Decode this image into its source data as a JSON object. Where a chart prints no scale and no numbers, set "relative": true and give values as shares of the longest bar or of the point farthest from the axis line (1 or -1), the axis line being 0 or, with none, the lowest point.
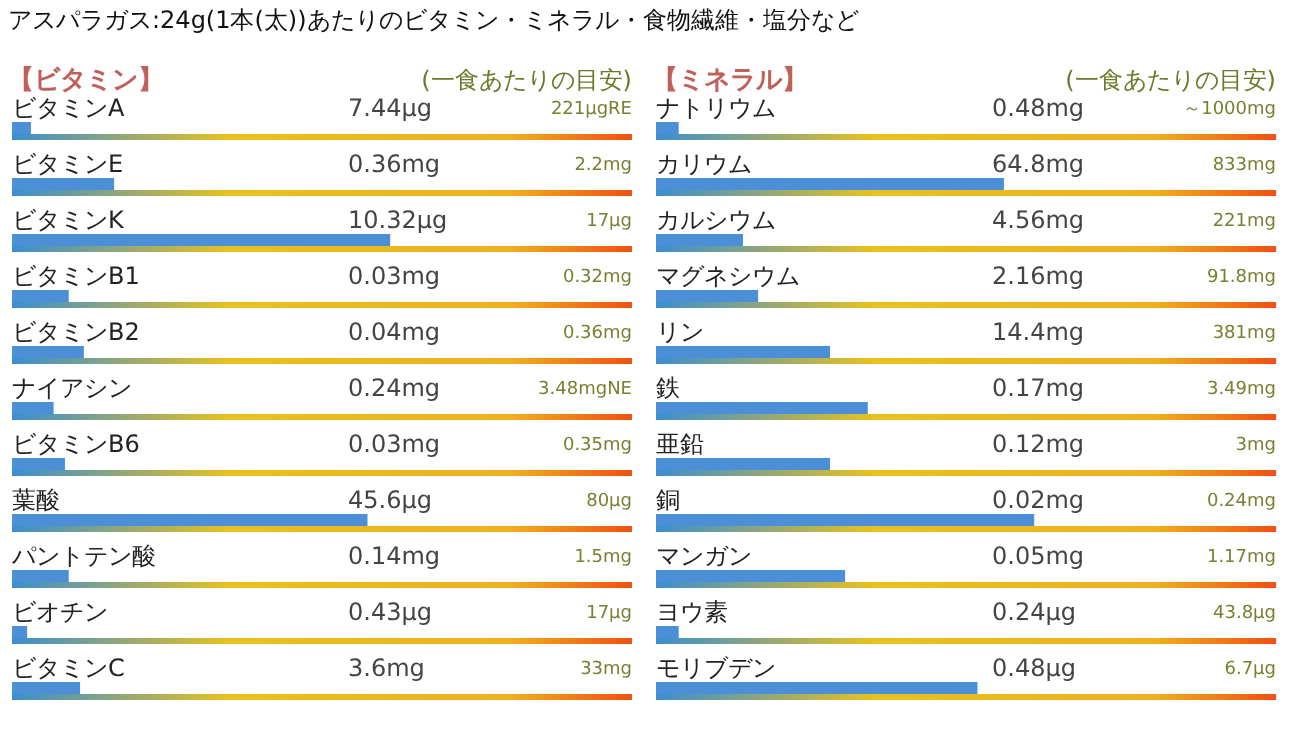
{
  "chart_data": [
    {
      "type": "bar",
      "orientation": "horizontal",
      "relative": true,
      "title": "アスパラガス:24g(1本(太))あたりのビタミン・ミネラル・食物繊維・塩分など",
      "subtitle": "【ビタミン】",
      "color": "#4a8fd8",
      "categories": [
        "ビタミンA",
        "ビタミンE",
        "ビタミンK",
        "ビタミンB1",
        "ビタミンB2",
        "ナイアシン",
        "ビタミンB6",
        "葉酸",
        "パントテン酸",
        "ビオチン",
        "ビタミンC"
      ],
      "values": [
        0.05,
        0.27,
        1,
        0.15,
        0.19,
        0.11,
        0.14,
        0.94,
        0.15,
        0.04,
        0.18
      ],
      "annotations": [
        "(一食あたりの目安)",
        "7.44μg",
        "221μgRE",
        "0.36mg",
        "2.2mg",
        "10.32μg",
        "17μg",
        "0.03mg",
        "0.32mg",
        "0.04mg",
        "0.36mg",
        "0.24mg",
        "3.48mgNE",
        "0.03mg",
        "0.35mg",
        "45.6μg",
        "80μg",
        "0.14mg",
        "1.5mg",
        "0.43μg",
        "17μg",
        "3.6mg",
        "33mg"
      ]
    },
    {
      "type": "bar",
      "orientation": "horizontal",
      "relative": true,
      "subtitle": "【ミネラル】",
      "color": "#4a8fd8",
      "categories": [
        "ナトリウム",
        "カリウム",
        "カルシウム",
        "マグネシウム",
        "リン",
        "鉄",
        "亜鉛",
        "銅",
        "マンガン",
        "ヨウ素",
        "モリブデン"
      ],
      "values": [
        0.06,
        0.92,
        0.23,
        0.27,
        0.46,
        0.56,
        0.46,
        1,
        0.5,
        0.06,
        0.85
      ],
      "annotations": [
        "(一食あたりの目安)",
        "0.48mg",
        "～1000mg",
        "64.8mg",
        "833mg",
        "4.56mg",
        "221mg",
        "2.16mg",
        "91.8mg",
        "14.4mg",
        "381mg",
        "0.17mg",
        "3.49mg",
        "0.12mg",
        "3mg",
        "0.02mg",
        "0.24mg",
        "0.05mg",
        "1.17mg",
        "0.24μg",
        "43.8μg",
        "0.48μg",
        "6.7μg"
      ]
    }
  ]
}
